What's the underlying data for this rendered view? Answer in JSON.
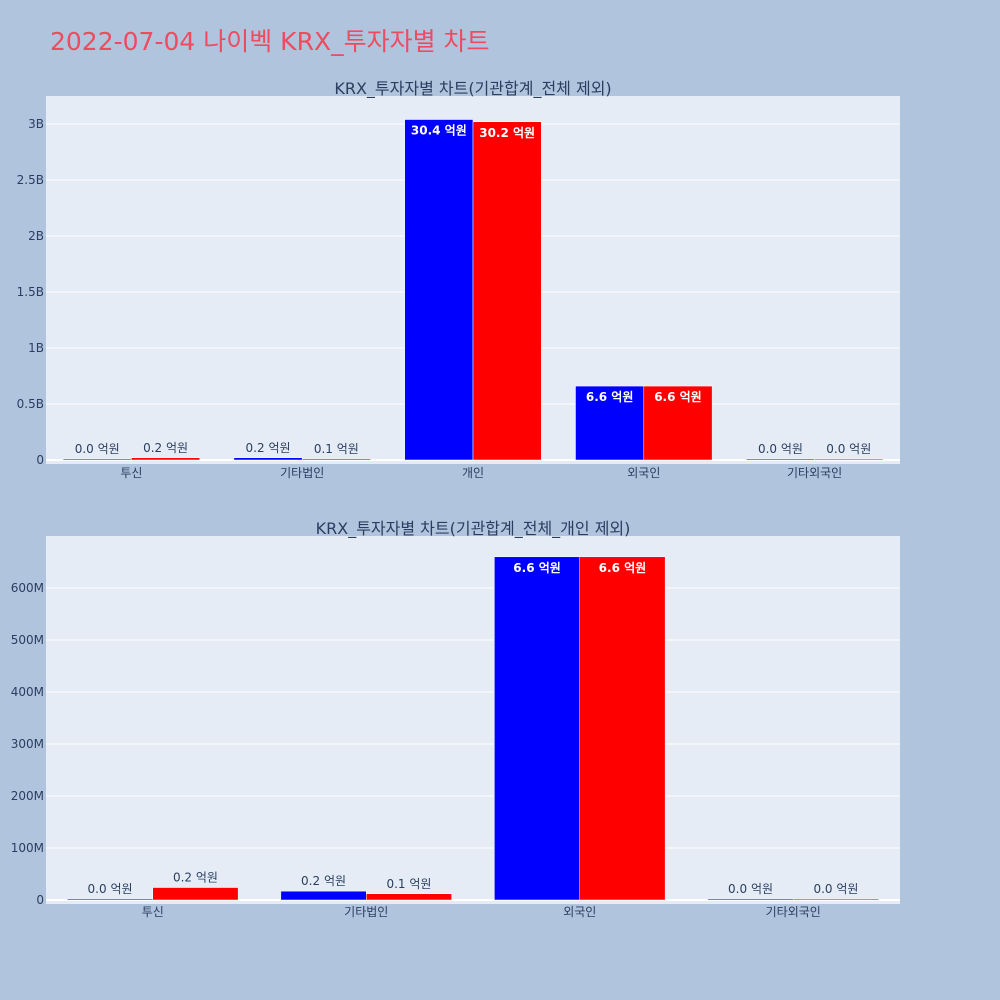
{
  "page_title": "2022-07-04 나이벡 KRX_투자자별 차트",
  "colors": {
    "series1": "#0000ff",
    "series2": "#ff0000",
    "plot_bg": "#e5ecf6",
    "page_bg": "#b0c4de",
    "title": "#ef4b5f"
  },
  "chart_data": [
    {
      "type": "bar",
      "title": "KRX_투자자별 차트(기관합계_전체 제외)",
      "categories": [
        "투신",
        "기타법인",
        "개인",
        "외국인",
        "기타외국인"
      ],
      "series": [
        {
          "values": [
            2000000,
            20000000,
            3040000000,
            660000000,
            1000000
          ],
          "labels": [
            "0.0 억원",
            "0.2 억원",
            "30.4 억원",
            "6.6 억원",
            "0.0 억원"
          ]
        },
        {
          "values": [
            20000000,
            10000000,
            3020000000,
            660000000,
            1000000
          ],
          "labels": [
            "0.2 억원",
            "0.1 억원",
            "30.2 억원",
            "6.6 억원",
            "0.0 억원"
          ]
        }
      ],
      "ylim": [
        0,
        3250000000
      ],
      "yticks": [
        0,
        500000000,
        1000000000,
        1500000000,
        2000000000,
        2500000000,
        3000000000
      ],
      "yticklabels": [
        "0",
        "0.5B",
        "1B",
        "1.5B",
        "2B",
        "2.5B",
        "3B"
      ],
      "grid": true
    },
    {
      "type": "bar",
      "title": "KRX_투자자별 차트(기관합계_전체_개인 제외)",
      "categories": [
        "투신",
        "기타법인",
        "외국인",
        "기타외국인"
      ],
      "series": [
        {
          "values": [
            2000000,
            17000000,
            660000000,
            2000000
          ],
          "labels": [
            "0.0 억원",
            "0.2 억원",
            "6.6 억원",
            "0.0 억원"
          ]
        },
        {
          "values": [
            24000000,
            12000000,
            660000000,
            2000000
          ],
          "labels": [
            "0.2 억원",
            "0.1 억원",
            "6.6 억원",
            "0.0 억원"
          ]
        }
      ],
      "ylim": [
        0,
        700000000
      ],
      "yticks": [
        0,
        100000000,
        200000000,
        300000000,
        400000000,
        500000000,
        600000000
      ],
      "yticklabels": [
        "0",
        "100M",
        "200M",
        "300M",
        "400M",
        "500M",
        "600M"
      ],
      "grid": true
    }
  ]
}
